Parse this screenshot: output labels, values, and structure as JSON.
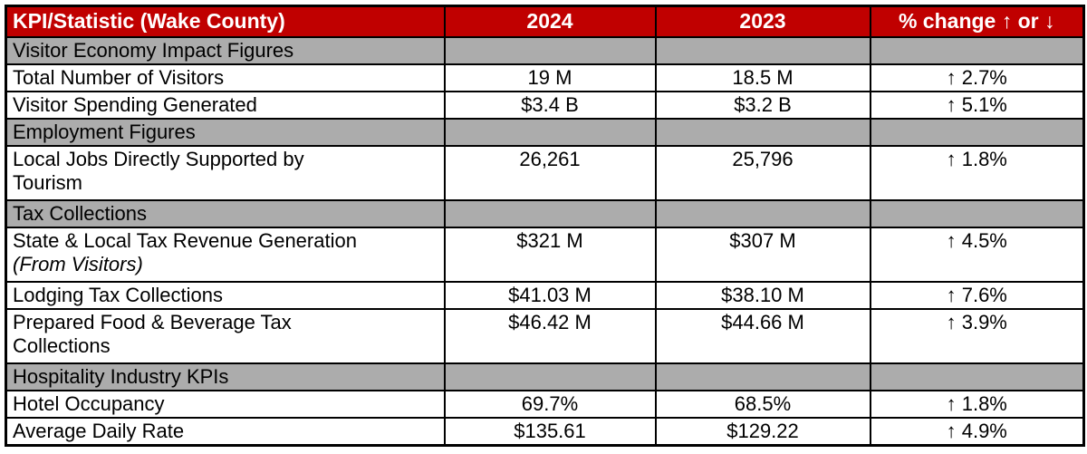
{
  "colors": {
    "header_bg": "#C00000",
    "header_text": "#FFFFFF",
    "section_bg": "#ACACAC",
    "border": "#000000",
    "data_text": "#000000"
  },
  "table": {
    "headers": [
      {
        "label": "KPI/Statistic (Wake County)"
      },
      {
        "label": "2024"
      },
      {
        "label": "2023"
      },
      {
        "label": "% change ↑ or ↓"
      }
    ],
    "rows": [
      {
        "type": "section",
        "label_lines": [
          "Visitor Economy Impact Figures"
        ]
      },
      {
        "type": "data",
        "label_lines": [
          "Total Number of Visitors"
        ],
        "values": [
          "19 M",
          "18.5 M",
          "↑ 2.7%"
        ]
      },
      {
        "type": "data",
        "label_lines": [
          "Visitor Spending Generated"
        ],
        "values": [
          "$3.4 B",
          "$3.2 B",
          "↑ 5.1%"
        ]
      },
      {
        "type": "section",
        "label_lines": [
          "Employment Figures"
        ]
      },
      {
        "type": "data",
        "label_lines": [
          "Local Jobs Directly Supported by",
          "Tourism"
        ],
        "values": [
          "26,261",
          "25,796",
          "↑ 1.8%"
        ]
      },
      {
        "type": "section",
        "label_lines": [
          "Tax Collections"
        ]
      },
      {
        "type": "data",
        "label_lines": [
          "State & Local Tax Revenue Generation",
          "(From Visitors)"
        ],
        "italic_lines": [
          1
        ],
        "values": [
          "$321 M",
          "$307 M",
          "↑ 4.5%"
        ]
      },
      {
        "type": "data",
        "label_lines": [
          "Lodging Tax Collections"
        ],
        "values": [
          "$41.03 M",
          "$38.10 M",
          "↑ 7.6%"
        ]
      },
      {
        "type": "data",
        "label_lines": [
          "Prepared Food & Beverage Tax",
          "Collections"
        ],
        "values": [
          "$46.42 M",
          "$44.66 M",
          "↑ 3.9%"
        ]
      },
      {
        "type": "section",
        "label_lines": [
          "Hospitality Industry KPIs"
        ]
      },
      {
        "type": "data",
        "label_lines": [
          "Hotel Occupancy"
        ],
        "values": [
          "69.7%",
          "68.5%",
          "↑ 1.8%"
        ]
      },
      {
        "type": "data",
        "label_lines": [
          "Average Daily Rate"
        ],
        "values": [
          "$135.61",
          "$129.22",
          "↑ 4.9%"
        ]
      }
    ]
  },
  "chart_data": {
    "type": "table",
    "title": "KPI/Statistic (Wake County)",
    "columns": [
      "KPI/Statistic (Wake County)",
      "2024",
      "2023",
      "% change ↑ or ↓"
    ],
    "sections": [
      {
        "name": "Visitor Economy Impact Figures",
        "rows": [
          [
            "Total Number of Visitors",
            "19 M",
            "18.5 M",
            "↑ 2.7%"
          ],
          [
            "Visitor Spending Generated",
            "$3.4 B",
            "$3.2 B",
            "↑ 5.1%"
          ]
        ]
      },
      {
        "name": "Employment Figures",
        "rows": [
          [
            "Local Jobs Directly Supported by Tourism",
            "26,261",
            "25,796",
            "↑ 1.8%"
          ]
        ]
      },
      {
        "name": "Tax Collections",
        "rows": [
          [
            "State & Local Tax Revenue Generation (From Visitors)",
            "$321 M",
            "$307 M",
            "↑ 4.5%"
          ],
          [
            "Lodging Tax Collections",
            "$41.03 M",
            "$38.10 M",
            "↑ 7.6%"
          ],
          [
            "Prepared Food & Beverage Tax Collections",
            "$46.42 M",
            "$44.66 M",
            "↑ 3.9%"
          ]
        ]
      },
      {
        "name": "Hospitality Industry KPIs",
        "rows": [
          [
            "Hotel Occupancy",
            "69.7%",
            "68.5%",
            "↑ 1.8%"
          ],
          [
            "Average Daily Rate",
            "$135.61",
            "$129.22",
            "↑ 4.9%"
          ]
        ]
      }
    ]
  }
}
